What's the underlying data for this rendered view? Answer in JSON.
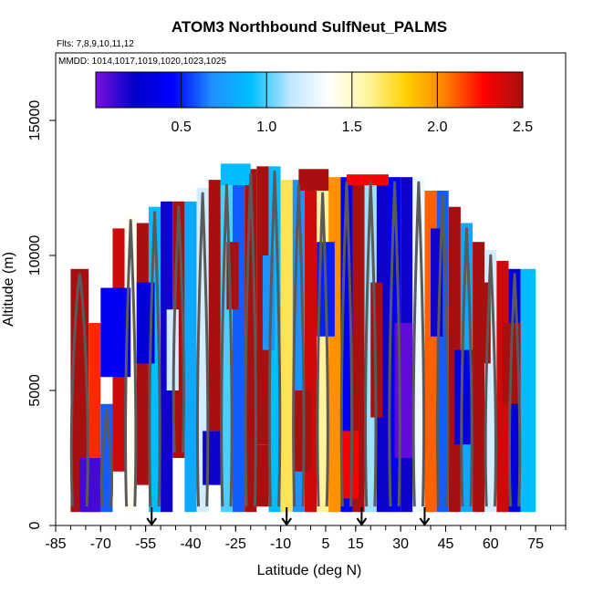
{
  "chart_data": {
    "type": "heatmap",
    "title": "ATOM3 Northbound SulfNeut_PALMS",
    "subtitle_flights": "Flts: 7,8,9,10,11,12",
    "subtitle_dates": "MMDD: 1014,1017,1019,1020,1023,1025",
    "xlabel": "Latitude (deg N)",
    "ylabel": "Altitude (m)",
    "xlim": [
      -85,
      85
    ],
    "ylim": [
      0,
      17500
    ],
    "x_tick_labels": [
      "-85",
      "-70",
      "-55",
      "-40",
      "-25",
      "-10",
      "5",
      "15",
      "30",
      "45",
      "60",
      "75"
    ],
    "x_tick_values": [
      -85,
      -70,
      -55,
      -40,
      -25,
      -10,
      5,
      15,
      30,
      45,
      60,
      75
    ],
    "y_tick_labels": [
      "0",
      "5000",
      "10000",
      "15000"
    ],
    "y_tick_values": [
      0,
      5000,
      10000,
      15000
    ],
    "colorbar": {
      "range": [
        0,
        2.5
      ],
      "tick_labels": [
        "0.5",
        "1.0",
        "1.5",
        "2.0",
        "2.5"
      ],
      "tick_values": [
        0.5,
        1.0,
        1.5,
        2.0,
        2.5
      ],
      "colors": [
        "#7a10e0",
        "#0000c8",
        "#0000ff",
        "#1e90ff",
        "#00bfff",
        "#bfe6ff",
        "#ffffff",
        "#fff5a0",
        "#ffd000",
        "#ff8000",
        "#ff0000",
        "#a81010"
      ]
    },
    "contour_levels": [
      0.5,
      1,
      1.5
    ],
    "contour_color": "#5a5a5a",
    "arrow_markers_lat": [
      -53,
      -8,
      17,
      38
    ],
    "field_bands": [
      {
        "lat": [
          -80,
          -74
        ],
        "alt": [
          500,
          9500
        ],
        "value": 2.5
      },
      {
        "lat": [
          -74,
          -70
        ],
        "alt": [
          500,
          7500
        ],
        "value": 2.2
      },
      {
        "lat": [
          -70,
          -66
        ],
        "alt": [
          500,
          4500
        ],
        "value": 0.6
      },
      {
        "lat": [
          -66,
          -62
        ],
        "alt": [
          2000,
          11000
        ],
        "value": 2.4
      },
      {
        "lat": [
          -62,
          -58
        ],
        "alt": [
          500,
          11500
        ],
        "value": 1.4
      },
      {
        "lat": [
          -58,
          -54
        ],
        "alt": [
          1500,
          11200
        ],
        "value": 2.5
      },
      {
        "lat": [
          -54,
          -50
        ],
        "alt": [
          500,
          11800
        ],
        "value": 0.9
      },
      {
        "lat": [
          -50,
          -46
        ],
        "alt": [
          500,
          12000
        ],
        "value": 0.2
      },
      {
        "lat": [
          -46,
          -42
        ],
        "alt": [
          2500,
          12000
        ],
        "value": 2.5
      },
      {
        "lat": [
          -42,
          -38
        ],
        "alt": [
          500,
          12000
        ],
        "value": 0.8
      },
      {
        "lat": [
          -38,
          -34
        ],
        "alt": [
          500,
          12500
        ],
        "value": 1.2
      },
      {
        "lat": [
          -34,
          -30
        ],
        "alt": [
          3500,
          12800
        ],
        "value": 2.5
      },
      {
        "lat": [
          -30,
          -26
        ],
        "alt": [
          500,
          12800
        ],
        "value": 1.0
      },
      {
        "lat": [
          -26,
          -22
        ],
        "alt": [
          500,
          13000
        ],
        "value": 0.6
      },
      {
        "lat": [
          -22,
          -18
        ],
        "alt": [
          500,
          13200
        ],
        "value": 2.5
      },
      {
        "lat": [
          -18,
          -14
        ],
        "alt": [
          3000,
          13300
        ],
        "value": 2.5
      },
      {
        "lat": [
          -14,
          -10
        ],
        "alt": [
          500,
          13300
        ],
        "value": 0.9
      },
      {
        "lat": [
          -10,
          -6
        ],
        "alt": [
          500,
          12800
        ],
        "value": 1.7
      },
      {
        "lat": [
          -6,
          -2
        ],
        "alt": [
          500,
          12800
        ],
        "value": 0.7
      },
      {
        "lat": [
          -2,
          2
        ],
        "alt": [
          500,
          12500
        ],
        "value": 2.4
      },
      {
        "lat": [
          2,
          6
        ],
        "alt": [
          500,
          12500
        ],
        "value": 1.6
      },
      {
        "lat": [
          6,
          10
        ],
        "alt": [
          500,
          12900
        ],
        "value": 2.0
      },
      {
        "lat": [
          10,
          14
        ],
        "alt": [
          500,
          12900
        ],
        "value": 0.4
      },
      {
        "lat": [
          14,
          18
        ],
        "alt": [
          500,
          12900
        ],
        "value": 2.5
      },
      {
        "lat": [
          18,
          22
        ],
        "alt": [
          500,
          12900
        ],
        "value": 1.1
      },
      {
        "lat": [
          22,
          26
        ],
        "alt": [
          500,
          12900
        ],
        "value": 0.2
      },
      {
        "lat": [
          26,
          30
        ],
        "alt": [
          500,
          12900
        ],
        "value": 0.4
      },
      {
        "lat": [
          30,
          34
        ],
        "alt": [
          500,
          12900
        ],
        "value": 0.2
      },
      {
        "lat": [
          34,
          38
        ],
        "alt": [
          500,
          12900
        ],
        "value": 1.3
      },
      {
        "lat": [
          38,
          42
        ],
        "alt": [
          500,
          12400
        ],
        "value": 2.1
      },
      {
        "lat": [
          42,
          46
        ],
        "alt": [
          500,
          12400
        ],
        "value": 0.6
      },
      {
        "lat": [
          46,
          50
        ],
        "alt": [
          500,
          11800
        ],
        "value": 2.5
      },
      {
        "lat": [
          50,
          54
        ],
        "alt": [
          500,
          11200
        ],
        "value": 0.8
      },
      {
        "lat": [
          54,
          58
        ],
        "alt": [
          500,
          10500
        ],
        "value": 2.5
      },
      {
        "lat": [
          58,
          62
        ],
        "alt": [
          500,
          10200
        ],
        "value": 1.2
      },
      {
        "lat": [
          62,
          66
        ],
        "alt": [
          500,
          9800
        ],
        "value": 2.4
      },
      {
        "lat": [
          66,
          70
        ],
        "alt": [
          500,
          9500
        ],
        "value": 0.3
      },
      {
        "lat": [
          70,
          75
        ],
        "alt": [
          500,
          9500
        ],
        "value": 0.9
      }
    ],
    "field_patches": [
      {
        "lat": [
          -77,
          -70
        ],
        "alt": [
          500,
          2500
        ],
        "value": 0.1
      },
      {
        "lat": [
          -70,
          -60
        ],
        "alt": [
          5500,
          8800
        ],
        "value": 0.4
      },
      {
        "lat": [
          -58,
          -52
        ],
        "alt": [
          6000,
          9000
        ],
        "value": 0.3
      },
      {
        "lat": [
          -48,
          -44
        ],
        "alt": [
          5000,
          8000
        ],
        "value": 1.2
      },
      {
        "lat": [
          -36,
          -30
        ],
        "alt": [
          1500,
          3500
        ],
        "value": 0.2
      },
      {
        "lat": [
          -28,
          -24
        ],
        "alt": [
          8000,
          10500
        ],
        "value": 2.5
      },
      {
        "lat": [
          -20,
          -14
        ],
        "alt": [
          700,
          3000
        ],
        "value": 2.5
      },
      {
        "lat": [
          -16,
          -12
        ],
        "alt": [
          6500,
          10000
        ],
        "value": 0.7
      },
      {
        "lat": [
          -6,
          0
        ],
        "alt": [
          2000,
          5000
        ],
        "value": 2.5
      },
      {
        "lat": [
          2,
          8
        ],
        "alt": [
          7000,
          10500
        ],
        "value": 0.5
      },
      {
        "lat": [
          10,
          16
        ],
        "alt": [
          1000,
          3500
        ],
        "value": 2.3
      },
      {
        "lat": [
          20,
          24
        ],
        "alt": [
          4000,
          9000
        ],
        "value": 2.5
      },
      {
        "lat": [
          28,
          34
        ],
        "alt": [
          2500,
          7500
        ],
        "value": 0.05
      },
      {
        "lat": [
          40,
          44
        ],
        "alt": [
          7000,
          11000
        ],
        "value": 0.2
      },
      {
        "lat": [
          48,
          54
        ],
        "alt": [
          3000,
          6500
        ],
        "value": 0.3
      },
      {
        "lat": [
          56,
          60
        ],
        "alt": [
          6000,
          9000
        ],
        "value": 2.5
      },
      {
        "lat": [
          64,
          70
        ],
        "alt": [
          4500,
          7500
        ],
        "value": 2.5
      },
      {
        "lat": [
          -30,
          -20
        ],
        "alt": [
          12600,
          13400
        ],
        "value": 0.9
      },
      {
        "lat": [
          -4,
          6
        ],
        "alt": [
          12400,
          13200
        ],
        "value": 2.5
      },
      {
        "lat": [
          12,
          26
        ],
        "alt": [
          12600,
          13000
        ],
        "value": 2.3
      }
    ]
  }
}
